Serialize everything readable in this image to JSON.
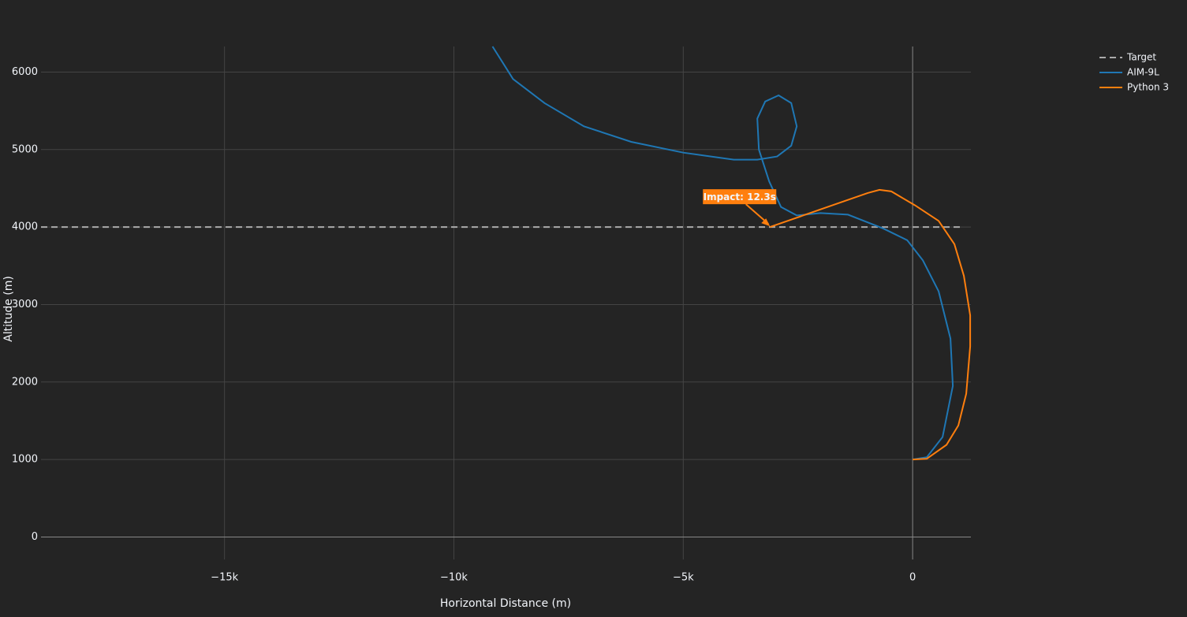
{
  "chart_data": {
    "type": "line",
    "x_label": "Horizontal Distance (m)",
    "y_label": "Altitude (m)",
    "xlim": [
      -19000,
      1270
    ],
    "ylim": [
      -290,
      6330
    ],
    "xticks": [
      {
        "value": -15000,
        "label": "−15k"
      },
      {
        "value": -10000,
        "label": "−10k"
      },
      {
        "value": -5000,
        "label": "−5k"
      },
      0
    ],
    "yticks": [
      0,
      1000,
      2000,
      3000,
      4000,
      5000,
      6000
    ],
    "grid": true,
    "legend": "top-right",
    "series": [
      {
        "name": "Target",
        "color": "#aaaaaa",
        "dash": true,
        "x": [
          -19000,
          1050
        ],
        "values": [
          4000,
          4000
        ]
      },
      {
        "name": "AIM-9L",
        "color": "#1f77b4",
        "x": [
          0,
          309,
          653,
          876,
          825,
          567,
          223,
          -120,
          -636,
          -1409,
          -2010,
          -2526,
          -2870,
          -3127,
          -3351,
          -3385,
          -3213,
          -2921,
          -2646,
          -2526,
          -2646,
          -2955,
          -3385,
          -3900,
          -5000,
          -6134,
          -7165,
          -8024,
          -8711,
          -9158
        ],
        "values": [
          1000,
          1030,
          1290,
          1950,
          2560,
          3170,
          3570,
          3830,
          3980,
          4160,
          4180,
          4150,
          4260,
          4590,
          5000,
          5400,
          5620,
          5700,
          5600,
          5300,
          5050,
          4910,
          4870,
          4870,
          4960,
          5100,
          5300,
          5600,
          5910,
          6330
        ]
      },
      {
        "name": "Python 3",
        "color": "#ff7f0e",
        "x": [
          0,
          309,
          739,
          997,
          1168,
          1254,
          1254,
          1117,
          911,
          567,
          52,
          -464,
          -722,
          -979,
          -3110
        ],
        "values": [
          1000,
          1010,
          1190,
          1440,
          1850,
          2460,
          2860,
          3370,
          3780,
          4080,
          4280,
          4460,
          4480,
          4440,
          4000
        ]
      }
    ],
    "annotation": {
      "text": "Impact: 12.3s",
      "x": -3110,
      "y": 4000,
      "color": "#ff7f0e"
    }
  }
}
